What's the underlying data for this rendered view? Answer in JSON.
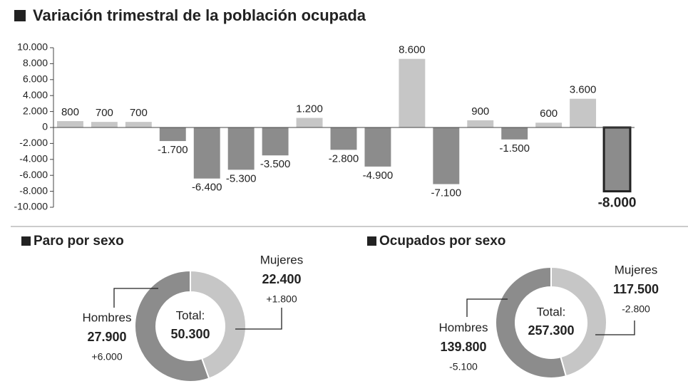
{
  "chart_data": [
    {
      "type": "bar",
      "title": "Variación trimestral de la población ocupada",
      "categories": [
        null,
        null,
        null,
        null,
        null,
        null,
        null,
        null,
        null,
        null,
        null,
        null,
        null,
        null,
        null,
        null,
        null
      ],
      "values": [
        800,
        700,
        700,
        -1700,
        -6400,
        -5300,
        -3500,
        1200,
        -2800,
        -4900,
        8600,
        -7100,
        900,
        -1500,
        600,
        3600,
        -8000
      ],
      "value_labels": [
        "800",
        "700",
        "700",
        "-1.700",
        "-6.400",
        "-5.300",
        "-3.500",
        "1.200",
        "-2.800",
        "-4.900",
        "8.600",
        "-7.100",
        "900",
        "-1.500",
        "600",
        "3.600",
        "-8.000"
      ],
      "positive_color": "#c6c6c6",
      "negative_color": "#8c8c8c",
      "ylim": [
        -10000,
        10000
      ],
      "yticks": [
        {
          "value": 10000,
          "label": "10.000"
        },
        {
          "value": 8000,
          "label": "8.000"
        },
        {
          "value": 6000,
          "label": "6.000"
        },
        {
          "value": 4000,
          "label": "4.000"
        },
        {
          "value": 2000,
          "label": "2.000"
        },
        0,
        {
          "value": -2000,
          "label": "-2.000"
        },
        {
          "value": -4000,
          "label": "-4.000"
        },
        {
          "value": -6000,
          "label": "-6.000"
        },
        {
          "value": -8000,
          "label": "-8.000"
        },
        {
          "value": -10000,
          "label": "-10.000"
        }
      ]
    },
    {
      "type": "pie",
      "donut": true,
      "title": "Paro por sexo",
      "categories": [
        "Hombres",
        "Mujeres"
      ],
      "values": [
        27900,
        22400
      ],
      "value_labels": [
        "27.900",
        "22.400"
      ],
      "changes": [
        6000,
        1800
      ],
      "change_labels": [
        "+6.000",
        "+1.800"
      ],
      "colors": [
        "#8c8c8c",
        "#c6c6c6"
      ],
      "center_label": "Total:",
      "total": 50300,
      "total_label": "50.300"
    },
    {
      "type": "pie",
      "donut": true,
      "title": "Ocupados por sexo",
      "categories": [
        "Hombres",
        "Mujeres"
      ],
      "values": [
        139800,
        117500
      ],
      "value_labels": [
        "139.800",
        "117.500"
      ],
      "changes": [
        -5100,
        -2800
      ],
      "change_labels": [
        "-5.100",
        "-2.800"
      ],
      "colors": [
        "#8c8c8c",
        "#c6c6c6"
      ],
      "center_label": "Total:",
      "total": 257300,
      "total_label": "257.300"
    }
  ]
}
